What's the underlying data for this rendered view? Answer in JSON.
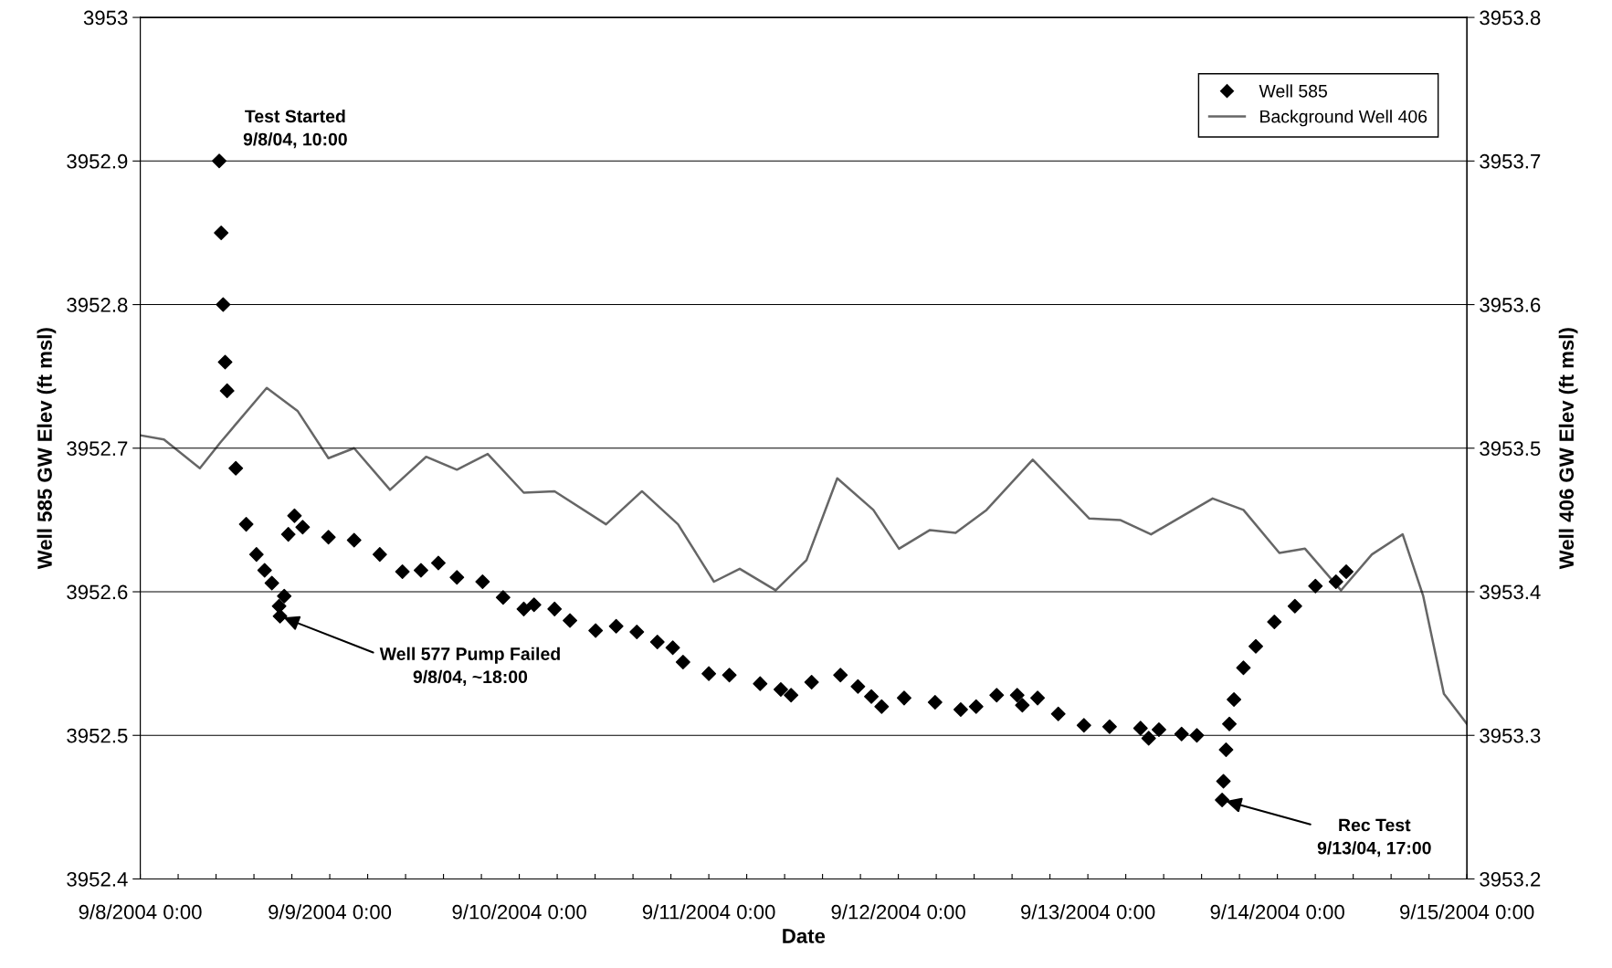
{
  "chart_data": {
    "type": "scatter",
    "xlabel": "Date",
    "ylabel": "Well 585 GW Elev (ft msl)",
    "y2label": "Well 406 GW Elev (ft msl)",
    "xlim": [
      "2004-09-08T00:00",
      "2004-09-15T00:00"
    ],
    "xticks": [
      {
        "value": "2004-09-08T00:00",
        "label": "9/8/2004 0:00"
      },
      {
        "value": "2004-09-08T04:48",
        "label": null
      },
      {
        "value": "2004-09-08T09:36",
        "label": null
      },
      {
        "value": "2004-09-08T14:24",
        "label": null
      },
      {
        "value": "2004-09-08T19:12",
        "label": null
      },
      {
        "value": "2004-09-09T00:00",
        "label": "9/9/2004 0:00"
      },
      {
        "value": "2004-09-09T04:48",
        "label": null
      },
      {
        "value": "2004-09-09T09:36",
        "label": null
      },
      {
        "value": "2004-09-09T14:24",
        "label": null
      },
      {
        "value": "2004-09-09T19:12",
        "label": null
      },
      {
        "value": "2004-09-10T00:00",
        "label": "9/10/2004 0:00"
      },
      {
        "value": "2004-09-10T04:48",
        "label": null
      },
      {
        "value": "2004-09-10T09:36",
        "label": null
      },
      {
        "value": "2004-09-10T14:24",
        "label": null
      },
      {
        "value": "2004-09-10T19:12",
        "label": null
      },
      {
        "value": "2004-09-11T00:00",
        "label": "9/11/2004 0:00"
      },
      {
        "value": "2004-09-11T04:48",
        "label": null
      },
      {
        "value": "2004-09-11T09:36",
        "label": null
      },
      {
        "value": "2004-09-11T14:24",
        "label": null
      },
      {
        "value": "2004-09-11T19:12",
        "label": null
      },
      {
        "value": "2004-09-12T00:00",
        "label": "9/12/2004 0:00"
      },
      {
        "value": "2004-09-12T04:48",
        "label": null
      },
      {
        "value": "2004-09-12T09:36",
        "label": null
      },
      {
        "value": "2004-09-12T14:24",
        "label": null
      },
      {
        "value": "2004-09-12T19:12",
        "label": null
      },
      {
        "value": "2004-09-13T00:00",
        "label": "9/13/2004 0:00"
      },
      {
        "value": "2004-09-13T04:48",
        "label": null
      },
      {
        "value": "2004-09-13T09:36",
        "label": null
      },
      {
        "value": "2004-09-13T14:24",
        "label": null
      },
      {
        "value": "2004-09-13T19:12",
        "label": null
      },
      {
        "value": "2004-09-14T00:00",
        "label": "9/14/2004 0:00"
      },
      {
        "value": "2004-09-14T04:48",
        "label": null
      },
      {
        "value": "2004-09-14T09:36",
        "label": null
      },
      {
        "value": "2004-09-14T14:24",
        "label": null
      },
      {
        "value": "2004-09-14T19:12",
        "label": null
      },
      {
        "value": "2004-09-15T00:00",
        "label": "9/15/2004 0:00"
      }
    ],
    "ylim": [
      3952.4,
      3953
    ],
    "yticks": [
      3952.4,
      3952.5,
      3952.6,
      3952.7,
      3952.8,
      3952.9,
      3953
    ],
    "y2lim": [
      3953.2,
      3953.8
    ],
    "y2ticks": [
      3953.2,
      3953.3,
      3953.4,
      3953.5,
      3953.6,
      3953.7,
      3953.8
    ],
    "grid": "y",
    "legend": "top right",
    "series": [
      {
        "name": "Well 585",
        "marker": "diamond",
        "color": "#000000",
        "x": [
          "2004-09-08T10:00",
          "2004-09-08T10:15",
          "2004-09-08T10:30",
          "2004-09-08T10:45",
          "2004-09-08T11:00",
          "2004-09-08T12:06",
          "2004-09-08T13:25",
          "2004-09-08T14:43",
          "2004-09-08T15:45",
          "2004-09-08T16:40",
          "2004-09-08T17:35",
          "2004-09-08T17:42",
          "2004-09-08T18:14",
          "2004-09-08T18:45",
          "2004-09-08T19:32",
          "2004-09-08T20:34",
          "2004-09-08T23:50",
          "2004-09-09T03:05",
          "2004-09-09T06:20",
          "2004-09-09T09:12",
          "2004-09-09T11:33",
          "2004-09-09T13:45",
          "2004-09-09T16:06",
          "2004-09-09T19:21",
          "2004-09-09T21:57",
          "2004-09-10T00:34",
          "2004-09-10T01:52",
          "2004-09-10T04:28",
          "2004-09-10T06:25",
          "2004-09-10T09:40",
          "2004-09-10T12:16",
          "2004-09-10T14:53",
          "2004-09-10T17:29",
          "2004-09-10T19:26",
          "2004-09-10T20:44",
          "2004-09-11T00:00",
          "2004-09-11T02:36",
          "2004-09-11T06:30",
          "2004-09-11T09:07",
          "2004-09-11T10:25",
          "2004-09-11T13:01",
          "2004-09-11T16:40",
          "2004-09-11T18:53",
          "2004-09-11T20:35",
          "2004-09-11T21:53",
          "2004-09-12T00:44",
          "2004-09-12T04:39",
          "2004-09-12T07:54",
          "2004-09-12T09:51",
          "2004-09-12T12:27",
          "2004-09-12T15:03",
          "2004-09-12T15:42",
          "2004-09-12T17:38",
          "2004-09-12T20:15",
          "2004-09-12T23:30",
          "2004-09-13T02:45",
          "2004-09-13T06:40",
          "2004-09-13T07:42",
          "2004-09-13T09:00",
          "2004-09-13T11:52",
          "2004-09-13T13:48",
          "2004-09-13T17:00",
          "2004-09-13T17:10",
          "2004-09-13T17:30",
          "2004-09-13T17:55",
          "2004-09-13T18:30",
          "2004-09-13T19:42",
          "2004-09-13T21:16",
          "2004-09-13T23:37",
          "2004-09-14T02:13",
          "2004-09-14T04:49",
          "2004-09-14T07:25",
          "2004-09-14T08:43"
        ],
        "values": [
          3952.9,
          3952.85,
          3952.8,
          3952.76,
          3952.74,
          3952.686,
          3952.647,
          3952.626,
          3952.615,
          3952.606,
          3952.59,
          3952.583,
          3952.597,
          3952.64,
          3952.653,
          3952.645,
          3952.638,
          3952.636,
          3952.626,
          3952.614,
          3952.615,
          3952.62,
          3952.61,
          3952.607,
          3952.596,
          3952.588,
          3952.591,
          3952.588,
          3952.58,
          3952.573,
          3952.576,
          3952.572,
          3952.565,
          3952.561,
          3952.551,
          3952.543,
          3952.542,
          3952.536,
          3952.532,
          3952.528,
          3952.537,
          3952.542,
          3952.534,
          3952.527,
          3952.52,
          3952.526,
          3952.523,
          3952.518,
          3952.52,
          3952.528,
          3952.528,
          3952.521,
          3952.526,
          3952.515,
          3952.507,
          3952.506,
          3952.505,
          3952.498,
          3952.504,
          3952.501,
          3952.5,
          3952.455,
          3952.468,
          3952.49,
          3952.508,
          3952.525,
          3952.547,
          3952.562,
          3952.579,
          3952.59,
          3952.604,
          3952.607,
          3952.614
        ]
      },
      {
        "name": "Background Well 406",
        "type": "line",
        "axis": "y2",
        "color": "#666666",
        "line_style": "solid",
        "x": [
          "2004-09-08T00:00",
          "2004-09-08T03:00",
          "2004-09-08T07:33",
          "2004-09-08T10:09",
          "2004-09-08T16:01",
          "2004-09-08T19:55",
          "2004-09-08T23:50",
          "2004-09-09T03:05",
          "2004-09-09T07:38",
          "2004-09-09T12:12",
          "2004-09-09T16:06",
          "2004-09-09T20:00",
          "2004-09-10T00:34",
          "2004-09-10T04:28",
          "2004-09-10T10:59",
          "2004-09-10T15:32",
          "2004-09-10T20:06",
          "2004-09-11T00:39",
          "2004-09-11T03:55",
          "2004-09-11T08:28",
          "2004-09-11T12:22",
          "2004-09-11T16:16",
          "2004-09-11T20:50",
          "2004-09-12T00:05",
          "2004-09-12T04:00",
          "2004-09-12T07:15",
          "2004-09-12T11:10",
          "2004-09-12T17:01",
          "2004-09-13T00:11",
          "2004-09-13T04:05",
          "2004-09-13T08:00",
          "2004-09-13T15:48",
          "2004-09-13T19:42",
          "2004-09-14T00:15",
          "2004-09-14T03:30",
          "2004-09-14T08:03",
          "2004-09-14T11:58",
          "2004-09-14T15:52",
          "2004-09-14T18:28",
          "2004-09-14T21:05",
          "2004-09-15T00:00"
        ],
        "values": [
          3953.509,
          3953.506,
          3953.486,
          3953.504,
          3953.542,
          3953.526,
          3953.493,
          3953.5,
          3953.471,
          3953.494,
          3953.485,
          3953.496,
          3953.469,
          3953.47,
          3953.447,
          3953.47,
          3953.447,
          3953.407,
          3953.416,
          3953.401,
          3953.422,
          3953.479,
          3953.457,
          3953.43,
          3953.443,
          3953.441,
          3953.457,
          3953.492,
          3953.451,
          3953.45,
          3953.44,
          3953.465,
          3953.457,
          3953.427,
          3953.43,
          3953.401,
          3953.426,
          3953.44,
          3953.397,
          3953.329,
          3953.308
        ]
      }
    ],
    "annotations": [
      {
        "text": "Test Started\n9/8/04, 10:00",
        "x": "2004-09-08T10:00",
        "y": 3952.9
      },
      {
        "text": "Well 577 Pump Failed\n9/8/04, ~18:00",
        "x": "2004-09-08T17:42",
        "y": 3952.583
      },
      {
        "text": "Rec Test\n9/13/04, 17:00",
        "x": "2004-09-13T17:00",
        "y": 3952.455
      }
    ]
  }
}
